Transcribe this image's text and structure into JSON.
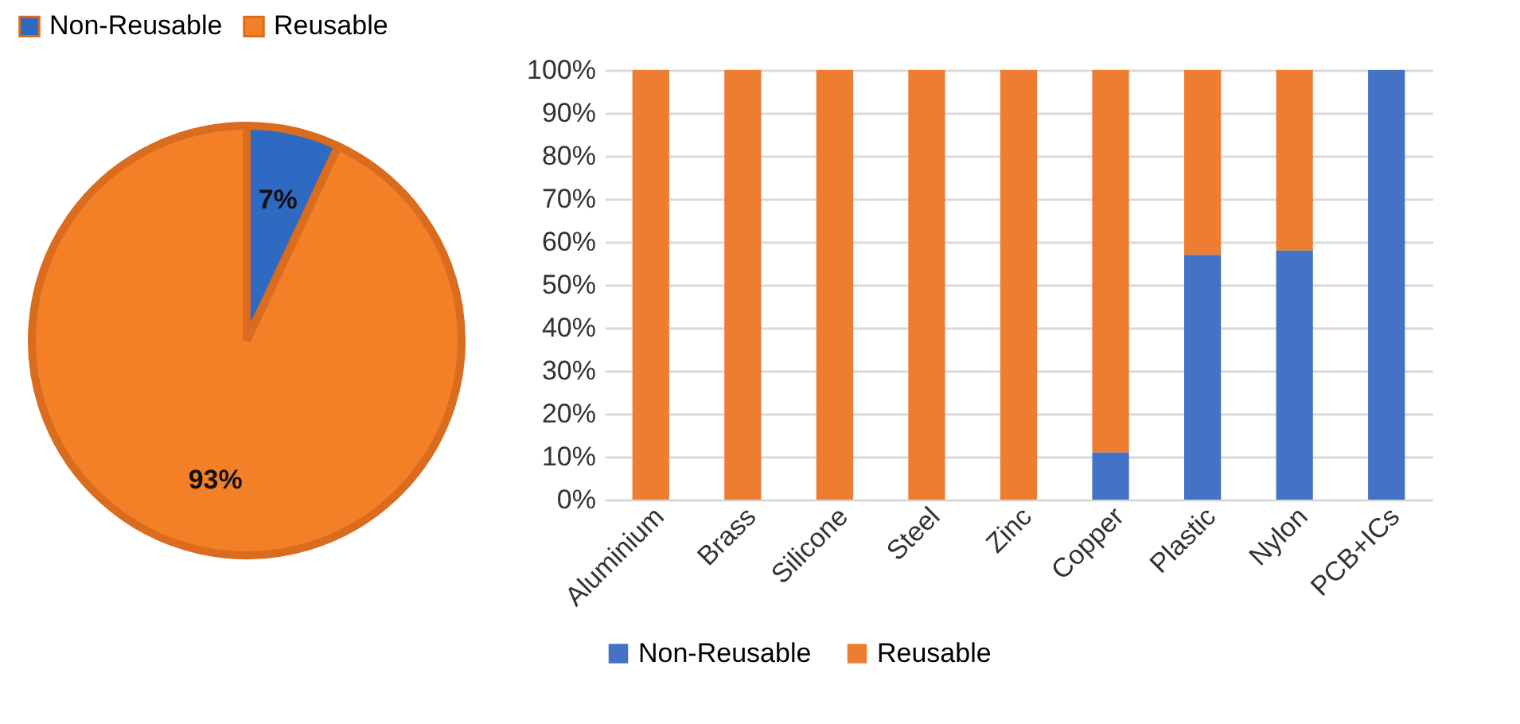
{
  "chart_data": [
    {
      "type": "pie",
      "categories": [
        "Non-Reusable",
        "Reusable"
      ],
      "values": [
        7,
        93
      ],
      "colors": [
        "#2e6ac2",
        "#f37f26"
      ],
      "value_labels": [
        "7%",
        "93%"
      ],
      "legend": "top"
    },
    {
      "type": "bar",
      "stacked": true,
      "categories": [
        "Aluminium",
        "Brass",
        "Silicone",
        "Steel",
        "Zinc",
        "Copper",
        "Plastic",
        "Nylon",
        "PCB+ICs"
      ],
      "series": [
        {
          "name": "Non-Reusable",
          "color": "#4472c4",
          "values": [
            0,
            0,
            0,
            0,
            0,
            11,
            57,
            58,
            100
          ]
        },
        {
          "name": "Reusable",
          "color": "#ed7d31",
          "values": [
            100,
            100,
            100,
            100,
            100,
            89,
            43,
            42,
            0
          ]
        }
      ],
      "ylim": [
        0,
        100
      ],
      "yticks": [
        {
          "value": 0,
          "label": "0%"
        },
        {
          "value": 10,
          "label": "10%"
        },
        {
          "value": 20,
          "label": "20%"
        },
        {
          "value": 30,
          "label": "30%"
        },
        {
          "value": 40,
          "label": "40%"
        },
        {
          "value": 50,
          "label": "50%"
        },
        {
          "value": 60,
          "label": "60%"
        },
        {
          "value": 70,
          "label": "70%"
        },
        {
          "value": 80,
          "label": "80%"
        },
        {
          "value": 90,
          "label": "90%"
        },
        {
          "value": 100,
          "label": "100%"
        }
      ],
      "grid": "y",
      "legend": "bottom"
    }
  ]
}
